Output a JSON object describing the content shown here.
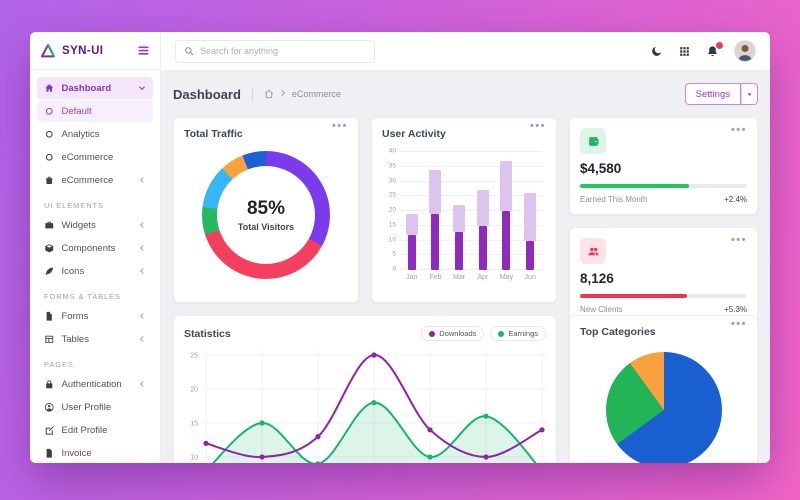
{
  "sidebar": {
    "brand": "SYN-UI",
    "items": [
      {
        "type": "link",
        "icon": "home",
        "label": "Dashboard",
        "chevron": "down",
        "state": "active"
      },
      {
        "type": "sublink",
        "icon": "radio",
        "label": "Default",
        "state": "sub-active"
      },
      {
        "type": "sublink",
        "icon": "radio",
        "label": "Analytics"
      },
      {
        "type": "sublink",
        "icon": "radio",
        "label": "eCommerce"
      },
      {
        "type": "link",
        "icon": "bag",
        "label": "eCommerce",
        "chevron": "left"
      },
      {
        "type": "section",
        "label": "UI ELEMENTS"
      },
      {
        "type": "link",
        "icon": "briefcase",
        "label": "Widgets",
        "chevron": "left"
      },
      {
        "type": "link",
        "icon": "package",
        "label": "Components",
        "chevron": "left"
      },
      {
        "type": "link",
        "icon": "feather",
        "label": "Icons",
        "chevron": "left"
      },
      {
        "type": "section",
        "label": "FORMS & TABLES"
      },
      {
        "type": "link",
        "icon": "file",
        "label": "Forms",
        "chevron": "left"
      },
      {
        "type": "link",
        "icon": "table",
        "label": "Tables",
        "chevron": "left"
      },
      {
        "type": "section",
        "label": "PAGES"
      },
      {
        "type": "link",
        "icon": "lock",
        "label": "Authentication",
        "chevron": "left"
      },
      {
        "type": "link",
        "icon": "user",
        "label": "User Profile"
      },
      {
        "type": "link",
        "icon": "edit",
        "label": "Edit Profile"
      },
      {
        "type": "link",
        "icon": "invoice",
        "label": "Invoice"
      }
    ]
  },
  "topbar": {
    "search_placeholder": "Search for anything"
  },
  "header": {
    "title": "Dashboard",
    "breadcrumb_item": "eCommerce",
    "settings_label": "Settings"
  },
  "stat_cards": [
    {
      "icon": "wallet",
      "icon_color": "#22b26a",
      "icon_bg": "#ddf5e8",
      "value": "$4,580",
      "label": "Earned This Month",
      "delta": "+2.4%",
      "progress_pct": 65,
      "bar_color": "#22c55e"
    },
    {
      "icon": "users",
      "icon_color": "#f2334e",
      "icon_bg": "#fde3e7",
      "value": "8,126",
      "label": "New Clients",
      "delta": "+5.3%",
      "progress_pct": 64,
      "bar_color": "#f0334f"
    }
  ],
  "chart_data": [
    {
      "id": "total-traffic",
      "type": "donut",
      "title": "Total Traffic",
      "center_value": "85%",
      "center_label": "Total Visitors",
      "segments": [
        {
          "name": "purple",
          "value": 33,
          "color": "#7c3aed"
        },
        {
          "name": "red",
          "value": 37,
          "color": "#f43f5e"
        },
        {
          "name": "green",
          "value": 7,
          "color": "#27b863"
        },
        {
          "name": "light-blue",
          "value": 11,
          "color": "#38b5f6"
        },
        {
          "name": "orange",
          "value": 6,
          "color": "#f9a13c"
        },
        {
          "name": "dark-blue",
          "value": 6,
          "color": "#1d5fd6"
        }
      ]
    },
    {
      "id": "user-activity",
      "type": "bar",
      "stacked": true,
      "title": "User Activity",
      "categories": [
        "Jan",
        "Feb",
        "Mar",
        "Apr",
        "May",
        "Jun"
      ],
      "series": [
        {
          "name": "base",
          "color": "#8e2bbd",
          "values": [
            12,
            19,
            13,
            15,
            20,
            10
          ]
        },
        {
          "name": "overlay",
          "color": "#dcc4ef",
          "values": [
            7,
            15,
            9,
            12,
            17,
            16
          ]
        }
      ],
      "totals": [
        19,
        34,
        22,
        27,
        37,
        26
      ],
      "ylim": [
        0,
        40
      ],
      "yticks": [
        0,
        5,
        10,
        15,
        20,
        25,
        30,
        35,
        40
      ]
    },
    {
      "id": "statistics",
      "type": "line",
      "title": "Statistics",
      "legend": [
        {
          "name": "Downloads",
          "color": "#8e24aa"
        },
        {
          "name": "Earnings",
          "color": "#12b76a"
        }
      ],
      "series": [
        {
          "name": "Earnings",
          "color": "#12b76a",
          "fill": true,
          "fill_color": "rgba(46,184,115,0.16)",
          "values": [
            8,
            15,
            9,
            18,
            10,
            16,
            8
          ]
        },
        {
          "name": "Downloads",
          "color": "#8e24aa",
          "fill": false,
          "values": [
            12,
            10,
            13,
            25,
            14,
            10,
            14
          ]
        }
      ],
      "yticks": [
        5,
        10,
        15,
        20,
        25
      ],
      "ylim": [
        3,
        27
      ]
    },
    {
      "id": "top-categories",
      "type": "pie",
      "title": "Top Categories",
      "segments": [
        {
          "name": "blue",
          "value": 65,
          "color": "#1a5fd0"
        },
        {
          "name": "green",
          "value": 25,
          "color": "#22b457"
        },
        {
          "name": "orange",
          "value": 10,
          "color": "#f9a03f"
        }
      ]
    }
  ]
}
